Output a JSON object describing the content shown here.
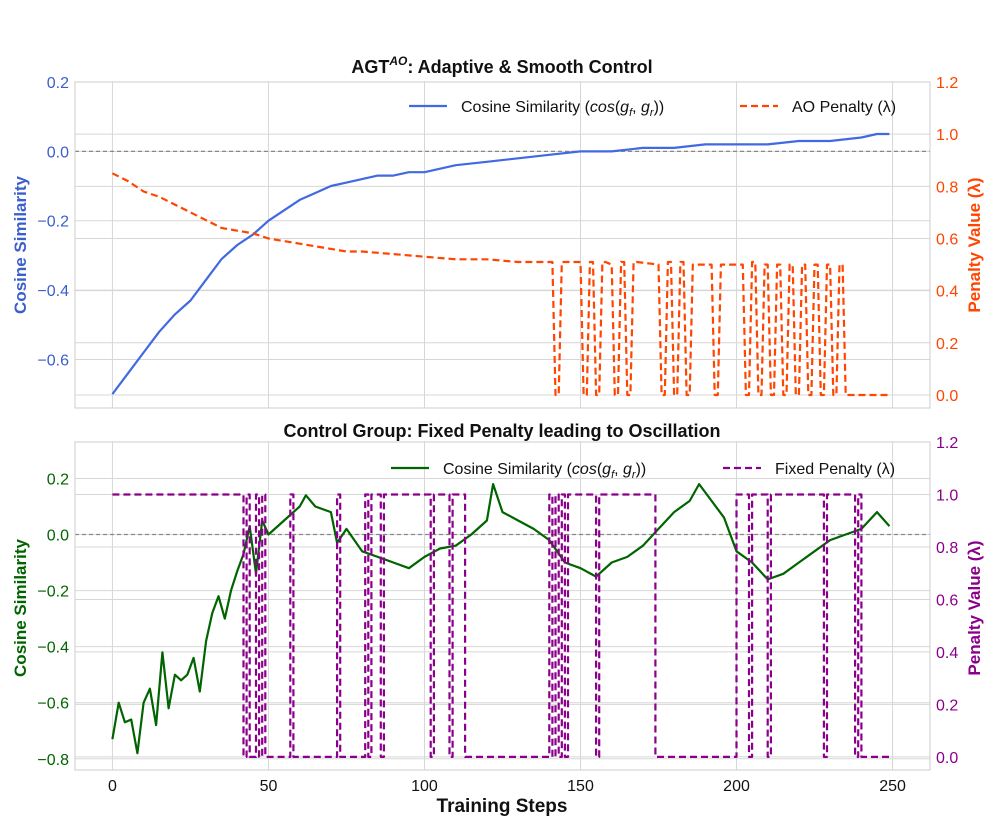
{
  "figure": {
    "xlabel": "Training Steps",
    "xticks": [
      0,
      50,
      100,
      150,
      200,
      250
    ]
  },
  "chart_data": [
    {
      "type": "line",
      "title_main": "AGT",
      "title_sup": "AO",
      "title_rest": ": Adaptive & Smooth Control",
      "xlim": [
        -12,
        262
      ],
      "ylabel": "Cosine Similarity",
      "ylabel2": "Penalty Value (λ)",
      "ylim": [
        -0.74,
        0.2
      ],
      "ylim2": [
        -0.05,
        1.2
      ],
      "yticks": [
        {
          "v": 0.2,
          "label": "0.2"
        },
        {
          "v": 0.0,
          "label": "0.0"
        },
        {
          "v": -0.2,
          "label": "−0.2"
        },
        {
          "v": -0.4,
          "label": "−0.4"
        },
        {
          "v": -0.6,
          "label": "−0.6"
        }
      ],
      "yticks2": [
        {
          "v": 1.2,
          "label": "1.2"
        },
        {
          "v": 1.0,
          "label": "1.0"
        },
        {
          "v": 0.8,
          "label": "0.8"
        },
        {
          "v": 0.6,
          "label": "0.6"
        },
        {
          "v": 0.4,
          "label": "0.4"
        },
        {
          "v": 0.2,
          "label": "0.2"
        },
        {
          "v": 0.0,
          "label": "0.0"
        }
      ],
      "left_color": "#3a5fcd",
      "right_color": "#ff4500",
      "hline": 0,
      "series": [
        {
          "name": "Cosine Similarity",
          "legend_math": "cos(g_f, g_r)",
          "axis": "left",
          "color": "#4169e1",
          "style": "solid",
          "x": [
            0,
            5,
            10,
            15,
            20,
            25,
            30,
            35,
            40,
            45,
            50,
            55,
            60,
            65,
            70,
            75,
            80,
            85,
            90,
            95,
            100,
            110,
            120,
            130,
            140,
            150,
            160,
            170,
            180,
            190,
            200,
            210,
            220,
            230,
            240,
            245,
            249
          ],
          "values": [
            -0.7,
            -0.64,
            -0.58,
            -0.52,
            -0.47,
            -0.43,
            -0.37,
            -0.31,
            -0.27,
            -0.24,
            -0.2,
            -0.17,
            -0.14,
            -0.12,
            -0.1,
            -0.09,
            -0.08,
            -0.07,
            -0.07,
            -0.06,
            -0.06,
            -0.04,
            -0.03,
            -0.02,
            -0.01,
            0.0,
            0.0,
            0.01,
            0.01,
            0.02,
            0.02,
            0.02,
            0.03,
            0.03,
            0.04,
            0.05,
            0.05
          ]
        },
        {
          "name": "AO Penalty (λ)",
          "axis": "right",
          "color": "#ff4500",
          "style": "dashed",
          "x": [
            0,
            5,
            10,
            15,
            20,
            25,
            30,
            35,
            40,
            45,
            50,
            55,
            60,
            65,
            70,
            75,
            80,
            90,
            100,
            110,
            120,
            130,
            141,
            142,
            143,
            144,
            150,
            151,
            152,
            153,
            154,
            155,
            156,
            157,
            158,
            160,
            161,
            162,
            163,
            164,
            165,
            166,
            167,
            168,
            175,
            176,
            177,
            178,
            179,
            180,
            181,
            182,
            183,
            184,
            185,
            186,
            187,
            192,
            193,
            194,
            195,
            202,
            203,
            204,
            205,
            206,
            207,
            208,
            209,
            210,
            211,
            212,
            213,
            214,
            215,
            216,
            217,
            218,
            219,
            220,
            221,
            222,
            223,
            224,
            225,
            226,
            227,
            228,
            229,
            230,
            231,
            232,
            233,
            234,
            235,
            236,
            249
          ],
          "values": [
            0.85,
            0.82,
            0.78,
            0.76,
            0.73,
            0.7,
            0.67,
            0.64,
            0.63,
            0.62,
            0.6,
            0.59,
            0.58,
            0.57,
            0.56,
            0.55,
            0.55,
            0.54,
            0.53,
            0.52,
            0.52,
            0.51,
            0.51,
            0.0,
            0.0,
            0.51,
            0.51,
            0.0,
            0.0,
            0.51,
            0.51,
            0.0,
            0.0,
            0.51,
            0.51,
            0.5,
            0.0,
            0.0,
            0.51,
            0.51,
            0.0,
            0.0,
            0.51,
            0.51,
            0.5,
            0.0,
            0.0,
            0.51,
            0.51,
            0.0,
            0.0,
            0.51,
            0.51,
            0.0,
            0.0,
            0.5,
            0.5,
            0.5,
            0.0,
            0.0,
            0.5,
            0.5,
            0.0,
            0.0,
            0.51,
            0.51,
            0.0,
            0.0,
            0.5,
            0.5,
            0.0,
            0.0,
            0.5,
            0.5,
            0.0,
            0.0,
            0.5,
            0.5,
            0.0,
            0.0,
            0.5,
            0.5,
            0.0,
            0.0,
            0.5,
            0.5,
            0.0,
            0.0,
            0.5,
            0.5,
            0.0,
            0.0,
            0.5,
            0.5,
            0.0,
            0.0,
            0.0
          ]
        }
      ]
    },
    {
      "type": "line",
      "title_main": "Control Group: Fixed Penalty leading to Oscillation",
      "title_sup": "",
      "title_rest": "",
      "xlim": [
        -12,
        262
      ],
      "ylabel": "Cosine Similarity",
      "ylabel2": "Penalty Value (λ)",
      "ylim": [
        -0.84,
        0.33
      ],
      "ylim2": [
        -0.05,
        1.2
      ],
      "yticks": [
        {
          "v": 0.2,
          "label": "0.2"
        },
        {
          "v": 0.0,
          "label": "0.0"
        },
        {
          "v": -0.2,
          "label": "−0.2"
        },
        {
          "v": -0.4,
          "label": "−0.4"
        },
        {
          "v": -0.6,
          "label": "−0.6"
        },
        {
          "v": -0.8,
          "label": "−0.8"
        }
      ],
      "yticks2": [
        {
          "v": 1.2,
          "label": "1.2"
        },
        {
          "v": 1.0,
          "label": "1.0"
        },
        {
          "v": 0.8,
          "label": "0.8"
        },
        {
          "v": 0.6,
          "label": "0.6"
        },
        {
          "v": 0.4,
          "label": "0.4"
        },
        {
          "v": 0.2,
          "label": "0.2"
        },
        {
          "v": 0.0,
          "label": "0.0"
        }
      ],
      "left_color": "#006400",
      "right_color": "#8b008b",
      "hline": 0,
      "series": [
        {
          "name": "Cosine Similarity",
          "legend_math": "cos(g_f, g_r)",
          "axis": "left",
          "color": "#006400",
          "style": "solid",
          "x": [
            0,
            2,
            4,
            6,
            8,
            10,
            12,
            14,
            16,
            18,
            20,
            22,
            24,
            26,
            28,
            30,
            32,
            34,
            36,
            38,
            40,
            42,
            44,
            46,
            48,
            50,
            55,
            60,
            62,
            65,
            70,
            72,
            75,
            80,
            85,
            90,
            95,
            100,
            105,
            110,
            115,
            120,
            122,
            125,
            130,
            135,
            140,
            145,
            150,
            155,
            160,
            165,
            170,
            175,
            180,
            185,
            188,
            192,
            196,
            200,
            205,
            210,
            215,
            220,
            225,
            230,
            235,
            240,
            245,
            249
          ],
          "values": [
            -0.73,
            -0.6,
            -0.67,
            -0.66,
            -0.78,
            -0.6,
            -0.55,
            -0.68,
            -0.42,
            -0.62,
            -0.5,
            -0.52,
            -0.5,
            -0.44,
            -0.56,
            -0.38,
            -0.28,
            -0.22,
            -0.3,
            -0.2,
            -0.13,
            -0.07,
            0.03,
            -0.14,
            0.05,
            0.0,
            0.05,
            0.1,
            0.14,
            0.1,
            0.08,
            -0.03,
            0.02,
            -0.06,
            -0.08,
            -0.1,
            -0.12,
            -0.08,
            -0.05,
            -0.04,
            0.0,
            0.05,
            0.18,
            0.08,
            0.05,
            0.02,
            -0.02,
            -0.1,
            -0.12,
            -0.15,
            -0.1,
            -0.08,
            -0.04,
            0.02,
            0.08,
            0.12,
            0.18,
            0.12,
            0.06,
            -0.06,
            -0.1,
            -0.16,
            -0.14,
            -0.1,
            -0.06,
            -0.02,
            0.0,
            0.02,
            0.08,
            0.03
          ]
        },
        {
          "name": "Fixed Penalty (λ)",
          "axis": "right",
          "color": "#8b008b",
          "style": "dashed",
          "x": [
            0,
            42,
            42,
            43,
            43,
            44,
            44,
            46,
            46,
            47,
            47,
            48,
            48,
            49,
            49,
            57,
            57,
            58,
            58,
            72,
            72,
            73,
            73,
            81,
            81,
            82,
            82,
            83,
            83,
            86,
            86,
            87,
            87,
            102,
            102,
            103,
            103,
            108,
            108,
            109,
            109,
            113,
            113,
            140,
            140,
            141,
            141,
            142,
            142,
            143,
            143,
            144,
            144,
            145,
            145,
            146,
            146,
            155,
            155,
            156,
            156,
            174,
            174,
            200,
            200,
            204,
            204,
            205,
            205,
            210,
            210,
            211,
            211,
            228,
            228,
            229,
            229,
            238,
            238,
            239,
            239,
            240,
            240,
            249
          ],
          "values": [
            1,
            1,
            0,
            0,
            1,
            1,
            0,
            0,
            1,
            1,
            0,
            0,
            1,
            1,
            0,
            0,
            1,
            1,
            0,
            0,
            1,
            1,
            0,
            0,
            1,
            1,
            0,
            0,
            1,
            1,
            0,
            0,
            1,
            1,
            0,
            0,
            1,
            1,
            0,
            0,
            1,
            1,
            0,
            0,
            1,
            1,
            0,
            0,
            1,
            1,
            0,
            0,
            1,
            1,
            0,
            0,
            1,
            1,
            0,
            0,
            1,
            1,
            0,
            0,
            1,
            1,
            0,
            0,
            1,
            1,
            0,
            0,
            1,
            1,
            0,
            0,
            1,
            1,
            0,
            0,
            1,
            1,
            0,
            0
          ]
        }
      ]
    }
  ]
}
